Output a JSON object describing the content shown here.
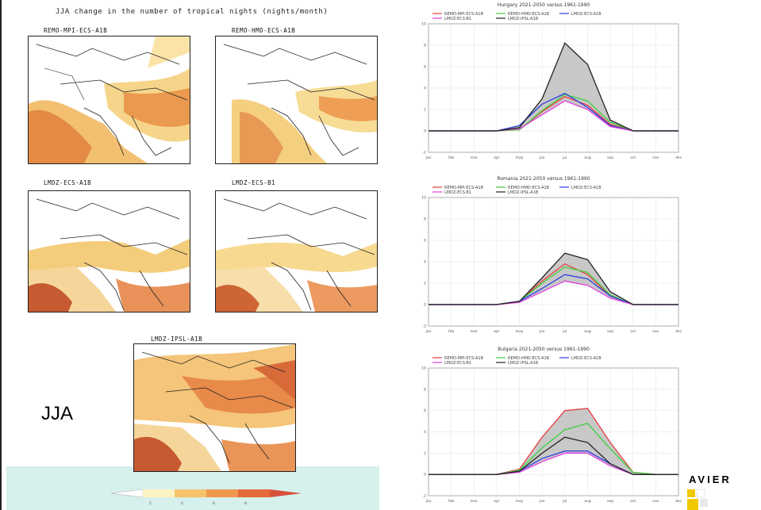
{
  "figure": {
    "title": "JJA change in the number of tropical nights (nights/month)",
    "season_label": "JJA",
    "colorbar_ticks": [
      "2",
      "4",
      "6",
      "8"
    ],
    "maps": [
      {
        "label": "REMO-MPI-ECS-A1B"
      },
      {
        "label": "REMO-HMD-ECS-A1B"
      },
      {
        "label": "LMDZ-ECS-A1B"
      },
      {
        "label": "LMDZ-ECS-B1"
      },
      {
        "label": "LMDZ-IPSL-A1B"
      }
    ],
    "logo_text": "AVIER"
  },
  "colors": {
    "red": "#e84040",
    "green": "#3fcf3f",
    "black": "#222222",
    "blue": "#2a3fe0",
    "magenta": "#e040e0",
    "envelope": "#c8c8c8"
  },
  "chart_data": [
    {
      "type": "line",
      "title": "Hungary 2021-2050 versus 1961-1990",
      "x_ticks": [
        "jan",
        "feb",
        "mar",
        "apr",
        "may",
        "jun",
        "jul",
        "aug",
        "sep",
        "oct",
        "nov",
        "dec"
      ],
      "ylim": [
        -2,
        10
      ],
      "series": [
        {
          "name": "REMO-MPI-ECS-A1B",
          "values": [
            0,
            0,
            0,
            0,
            0.1,
            1.8,
            3.2,
            2.4,
            0.6,
            0,
            0,
            0
          ]
        },
        {
          "name": "REMO-HMD-ECS-A1B",
          "values": [
            0,
            0,
            0,
            0,
            0.1,
            1.9,
            3.4,
            2.8,
            0.8,
            0,
            0,
            0
          ]
        },
        {
          "name": "LMDZ-ECS-A1B",
          "values": [
            0,
            0,
            0,
            0,
            0.5,
            2.5,
            3.5,
            2.2,
            0.5,
            0,
            0,
            0
          ]
        },
        {
          "name": "LMDZ-ECS-B1",
          "values": [
            0,
            0,
            0,
            0,
            0.2,
            1.5,
            2.8,
            2.0,
            0.4,
            0,
            0,
            0
          ]
        },
        {
          "name": "LMDZ-IPSL-A1B",
          "values": [
            0,
            0,
            0,
            0,
            0.3,
            3.0,
            8.2,
            6.2,
            1.0,
            0,
            0,
            0
          ]
        }
      ]
    },
    {
      "type": "line",
      "title": "Romania 2021-2050 versus 1961-1990",
      "x_ticks": [
        "jan",
        "feb",
        "mar",
        "apr",
        "may",
        "jun",
        "jul",
        "aug",
        "sep",
        "oct",
        "nov",
        "dec"
      ],
      "ylim": [
        -2,
        10
      ],
      "series": [
        {
          "name": "REMO-MPI-ECS-A1B",
          "values": [
            0,
            0,
            0,
            0,
            0.3,
            2.2,
            3.8,
            2.8,
            0.8,
            0,
            0,
            0
          ]
        },
        {
          "name": "REMO-HMD-ECS-A1B",
          "values": [
            0,
            0,
            0,
            0,
            0.3,
            2.0,
            3.5,
            3.0,
            0.9,
            0,
            0,
            0
          ]
        },
        {
          "name": "LMDZ-ECS-A1B",
          "values": [
            0,
            0,
            0,
            0,
            0.3,
            1.5,
            2.8,
            2.4,
            0.8,
            0,
            0,
            0
          ]
        },
        {
          "name": "LMDZ-ECS-B1",
          "values": [
            0,
            0,
            0,
            0,
            0.2,
            1.2,
            2.2,
            1.8,
            0.6,
            0,
            0,
            0
          ]
        },
        {
          "name": "LMDZ-IPSL-A1B",
          "values": [
            0,
            0,
            0,
            0,
            0.3,
            2.5,
            4.8,
            4.2,
            1.2,
            0,
            0,
            0
          ]
        }
      ]
    },
    {
      "type": "line",
      "title": "Bulgaria 2021-2050 versus 1961-1990",
      "x_ticks": [
        "jan",
        "feb",
        "mar",
        "apr",
        "may",
        "jun",
        "jul",
        "aug",
        "sep",
        "oct",
        "nov",
        "dec"
      ],
      "ylim": [
        -2,
        10
      ],
      "series": [
        {
          "name": "REMO-MPI-ECS-A1B",
          "values": [
            0,
            0,
            0,
            0,
            0.5,
            3.5,
            6.0,
            6.2,
            3.0,
            0.2,
            0,
            0
          ]
        },
        {
          "name": "REMO-HMD-ECS-A1B",
          "values": [
            0,
            0,
            0,
            0,
            0.4,
            2.5,
            4.2,
            4.8,
            2.4,
            0.2,
            0,
            0
          ]
        },
        {
          "name": "LMDZ-ECS-A1B",
          "values": [
            0,
            0,
            0,
            0,
            0.3,
            1.5,
            2.2,
            2.2,
            1.0,
            0,
            0,
            0
          ]
        },
        {
          "name": "LMDZ-ECS-B1",
          "values": [
            0,
            0,
            0,
            0,
            0.2,
            1.2,
            2.0,
            2.0,
            0.8,
            0,
            0,
            0
          ]
        },
        {
          "name": "LMDZ-IPSL-A1B",
          "values": [
            0,
            0,
            0,
            0,
            0.3,
            2.0,
            3.5,
            3.0,
            1.0,
            0,
            0,
            0
          ]
        }
      ]
    }
  ]
}
